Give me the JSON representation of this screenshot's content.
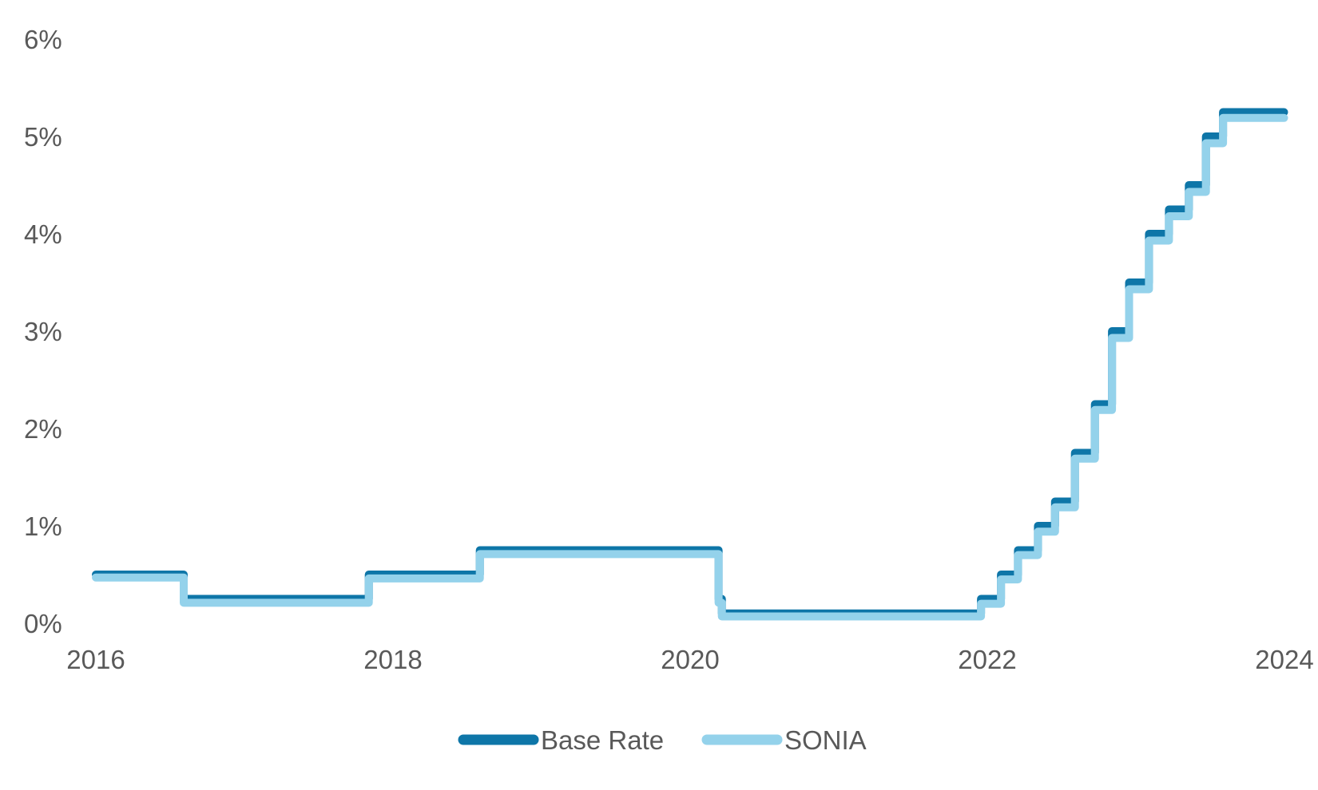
{
  "chart_data": {
    "type": "line",
    "title": "",
    "xlabel": "",
    "ylabel": "",
    "x_ticks": [
      "2016",
      "2018",
      "2020",
      "2022",
      "2024"
    ],
    "y_ticks": [
      "0%",
      "1%",
      "2%",
      "3%",
      "4%",
      "5%",
      "6%"
    ],
    "xlim": [
      "2016-01-01",
      "2024-01-01"
    ],
    "ylim": [
      0,
      6
    ],
    "grid": false,
    "legend_position": "bottom",
    "series": [
      {
        "name": "Base Rate",
        "color": "#0E76A8",
        "points": [
          [
            "2016-01-01",
            0.5
          ],
          [
            "2016-08-04",
            0.5
          ],
          [
            "2016-08-04",
            0.25
          ],
          [
            "2017-11-02",
            0.25
          ],
          [
            "2017-11-02",
            0.5
          ],
          [
            "2018-08-02",
            0.5
          ],
          [
            "2018-08-02",
            0.75
          ],
          [
            "2020-03-11",
            0.75
          ],
          [
            "2020-03-11",
            0.25
          ],
          [
            "2020-03-19",
            0.25
          ],
          [
            "2020-03-19",
            0.1
          ],
          [
            "2021-12-16",
            0.1
          ],
          [
            "2021-12-16",
            0.25
          ],
          [
            "2022-02-03",
            0.25
          ],
          [
            "2022-02-03",
            0.5
          ],
          [
            "2022-03-17",
            0.5
          ],
          [
            "2022-03-17",
            0.75
          ],
          [
            "2022-05-05",
            0.75
          ],
          [
            "2022-05-05",
            1.0
          ],
          [
            "2022-06-16",
            1.0
          ],
          [
            "2022-06-16",
            1.25
          ],
          [
            "2022-08-04",
            1.25
          ],
          [
            "2022-08-04",
            1.75
          ],
          [
            "2022-09-22",
            1.75
          ],
          [
            "2022-09-22",
            2.25
          ],
          [
            "2022-11-03",
            2.25
          ],
          [
            "2022-11-03",
            3.0
          ],
          [
            "2022-12-15",
            3.0
          ],
          [
            "2022-12-15",
            3.5
          ],
          [
            "2023-02-02",
            3.5
          ],
          [
            "2023-02-02",
            4.0
          ],
          [
            "2023-03-23",
            4.0
          ],
          [
            "2023-03-23",
            4.25
          ],
          [
            "2023-05-11",
            4.25
          ],
          [
            "2023-05-11",
            4.5
          ],
          [
            "2023-06-22",
            4.5
          ],
          [
            "2023-06-22",
            5.0
          ],
          [
            "2023-08-03",
            5.0
          ],
          [
            "2023-08-03",
            5.25
          ],
          [
            "2023-12-31",
            5.25
          ]
        ]
      },
      {
        "name": "SONIA",
        "color": "#94D2EB",
        "points": [
          [
            "2016-01-01",
            0.47
          ],
          [
            "2016-08-04",
            0.47
          ],
          [
            "2016-08-04",
            0.21
          ],
          [
            "2017-11-02",
            0.21
          ],
          [
            "2017-11-02",
            0.46
          ],
          [
            "2018-08-02",
            0.46
          ],
          [
            "2018-08-02",
            0.71
          ],
          [
            "2020-03-11",
            0.71
          ],
          [
            "2020-03-11",
            0.21
          ],
          [
            "2020-03-19",
            0.21
          ],
          [
            "2020-03-19",
            0.07
          ],
          [
            "2021-12-16",
            0.07
          ],
          [
            "2021-12-16",
            0.2
          ],
          [
            "2022-02-03",
            0.2
          ],
          [
            "2022-02-03",
            0.45
          ],
          [
            "2022-03-17",
            0.45
          ],
          [
            "2022-03-17",
            0.7
          ],
          [
            "2022-05-05",
            0.7
          ],
          [
            "2022-05-05",
            0.94
          ],
          [
            "2022-06-16",
            0.94
          ],
          [
            "2022-06-16",
            1.19
          ],
          [
            "2022-08-04",
            1.19
          ],
          [
            "2022-08-04",
            1.69
          ],
          [
            "2022-09-22",
            1.69
          ],
          [
            "2022-09-22",
            2.19
          ],
          [
            "2022-11-03",
            2.19
          ],
          [
            "2022-11-03",
            2.93
          ],
          [
            "2022-12-15",
            2.93
          ],
          [
            "2022-12-15",
            3.43
          ],
          [
            "2023-02-02",
            3.43
          ],
          [
            "2023-02-02",
            3.93
          ],
          [
            "2023-03-23",
            3.93
          ],
          [
            "2023-03-23",
            4.18
          ],
          [
            "2023-05-11",
            4.18
          ],
          [
            "2023-05-11",
            4.43
          ],
          [
            "2023-06-22",
            4.43
          ],
          [
            "2023-06-22",
            4.93
          ],
          [
            "2023-08-03",
            4.93
          ],
          [
            "2023-08-03",
            5.19
          ],
          [
            "2023-12-31",
            5.19
          ]
        ]
      }
    ]
  }
}
